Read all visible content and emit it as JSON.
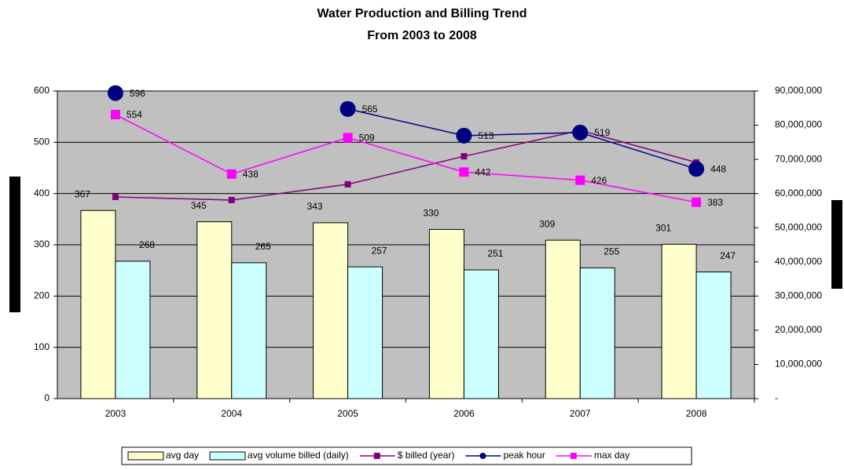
{
  "chart_data": {
    "type": "bar",
    "title": "Water Production and Billing Trend",
    "subtitle": "From 2003 to 2008",
    "categories": [
      "2003",
      "2004",
      "2005",
      "2006",
      "2007",
      "2008"
    ],
    "series": [
      {
        "name": "avg day",
        "type": "bar",
        "color": "#ffffcc",
        "values": [
          367,
          345,
          343,
          330,
          309,
          301
        ]
      },
      {
        "name": "avg volume billed (daily)",
        "type": "bar",
        "color": "#ccffff",
        "values": [
          268,
          265,
          257,
          251,
          255,
          247
        ]
      },
      {
        "name": "$ billed (year)",
        "type": "line",
        "marker": "square",
        "color": "#800080",
        "axis": "y2",
        "values": [
          59000000,
          58100000,
          62700000,
          70900000,
          78500000,
          69100000
        ]
      },
      {
        "name": "peak hour",
        "type": "line",
        "marker": "circle",
        "color": "#000080",
        "values": [
          596,
          null,
          565,
          513,
          519,
          448
        ]
      },
      {
        "name": "max day",
        "type": "line",
        "marker": "square",
        "color": "#ff00ff",
        "values": [
          554,
          438,
          509,
          442,
          426,
          383
        ]
      }
    ],
    "ylim": [
      0,
      600
    ],
    "yticks": [
      0,
      100,
      200,
      300,
      400,
      500,
      600
    ],
    "y2lim": [
      0,
      90000000
    ],
    "y2ticks": [
      {
        "value": 0,
        "label": "-"
      },
      {
        "value": 10000000,
        "label": "10,000,000"
      },
      {
        "value": 20000000,
        "label": "20,000,000"
      },
      {
        "value": 30000000,
        "label": "30,000,000"
      },
      {
        "value": 40000000,
        "label": "40,000,000"
      },
      {
        "value": 50000000,
        "label": "50,000,000"
      },
      {
        "value": 60000000,
        "label": "60,000,000"
      },
      {
        "value": 70000000,
        "label": "70,000,000"
      },
      {
        "value": 80000000,
        "label": "80,000,000"
      },
      {
        "value": 90000000,
        "label": "90,000,000"
      }
    ],
    "grid": true,
    "legend": "bottom"
  }
}
